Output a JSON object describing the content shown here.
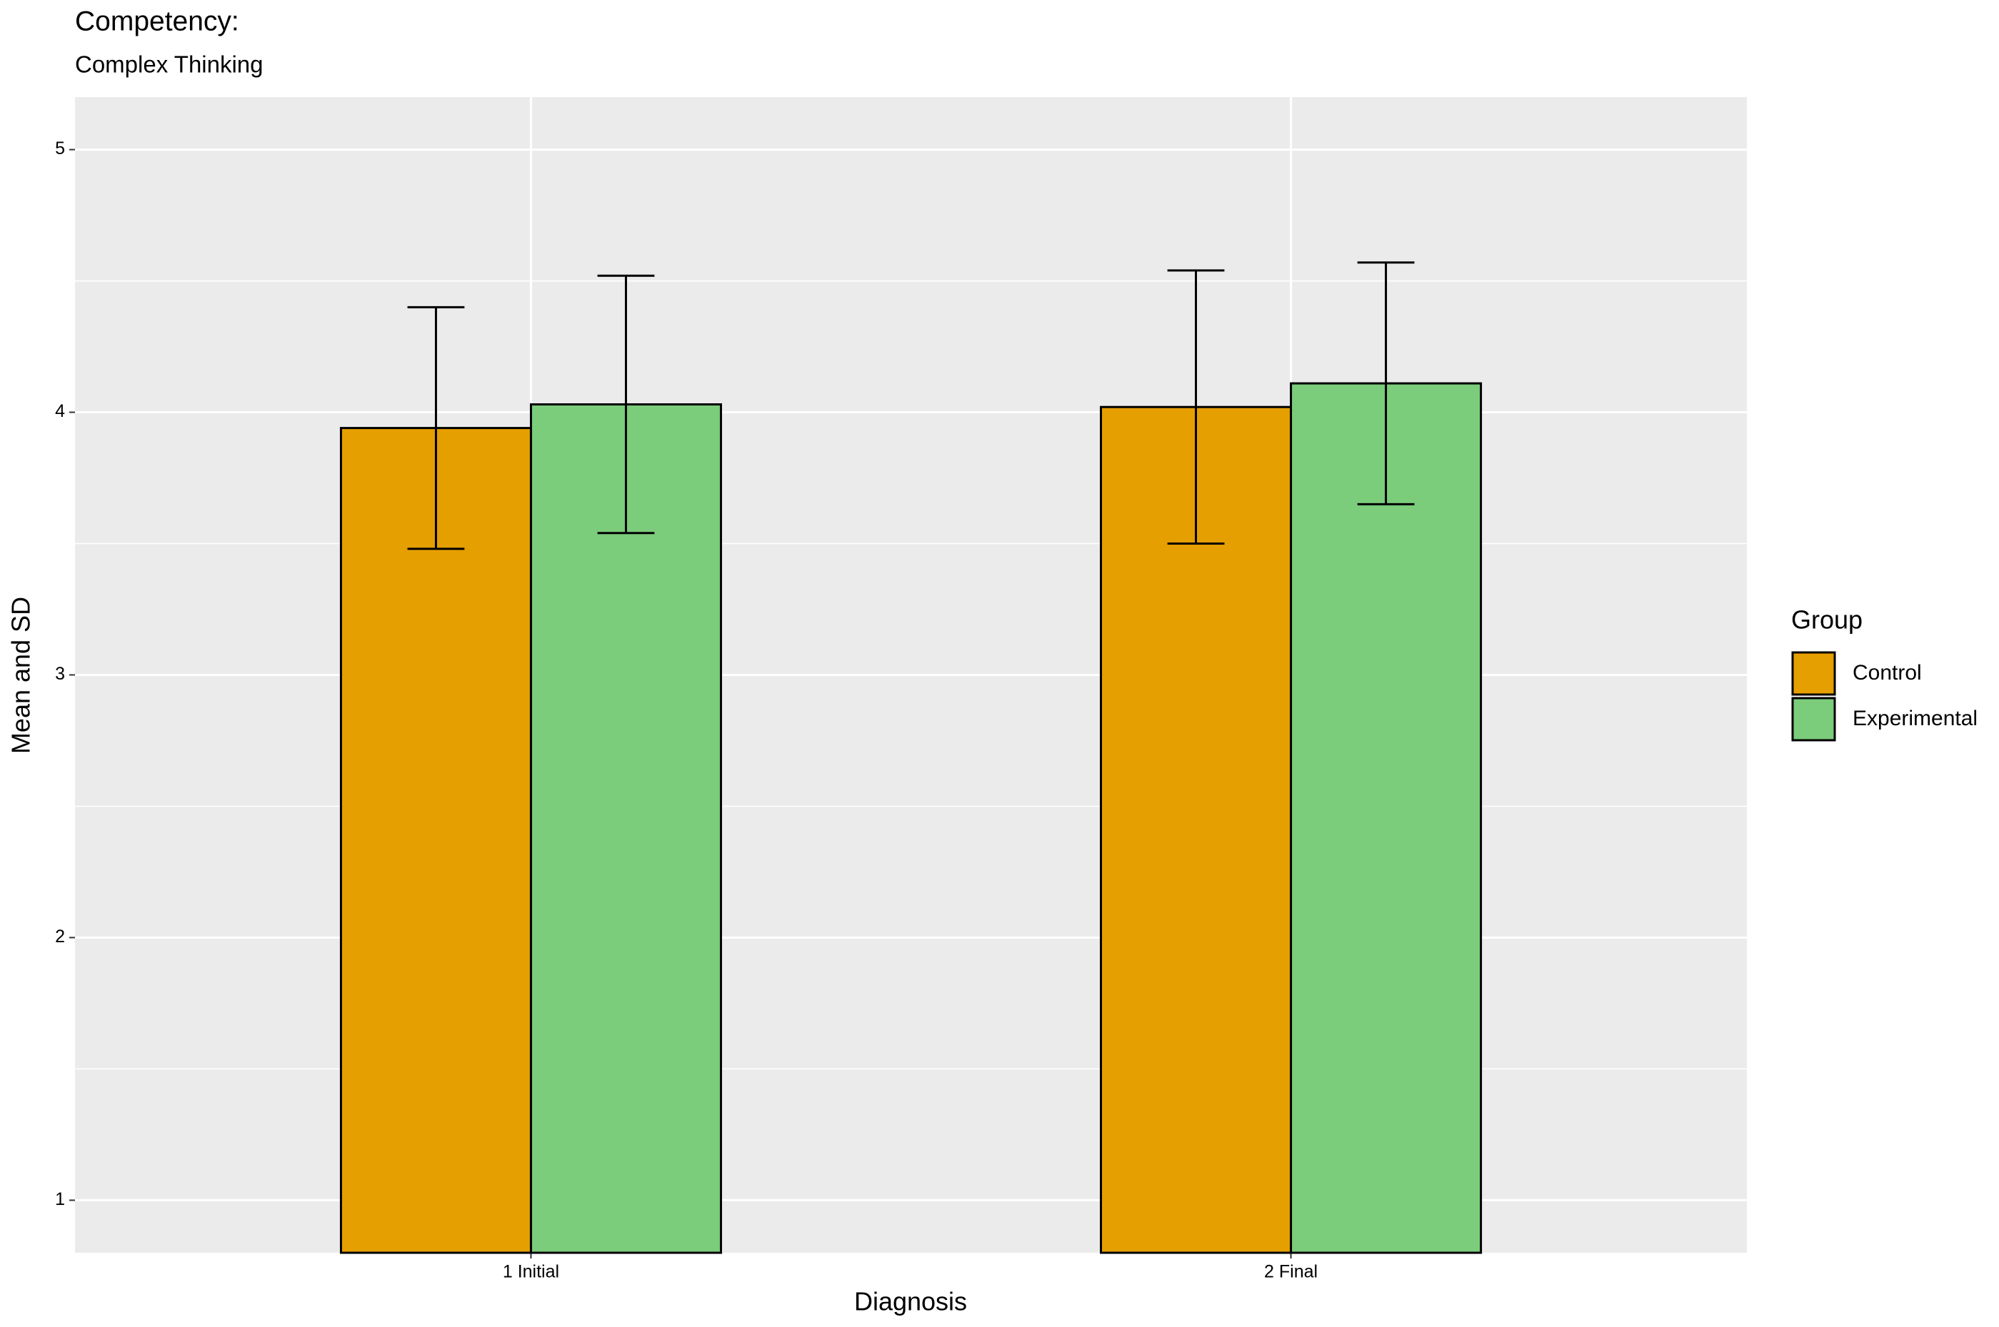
{
  "chart_data": {
    "type": "bar",
    "title": "Competency:",
    "subtitle": "Complex Thinking",
    "x_label": "Diagnosis",
    "y_label": "Mean and SD",
    "categories": [
      "1 Initial",
      "2 Final"
    ],
    "series": [
      {
        "name": "Control",
        "color": "#E69F00",
        "values": [
          3.94,
          4.02
        ],
        "errors": [
          0.46,
          0.52
        ]
      },
      {
        "name": "Experimental",
        "color": "#7BCC7B",
        "values": [
          4.03,
          4.11
        ],
        "errors": [
          0.49,
          0.46
        ]
      }
    ],
    "legend_title": "Group",
    "legend_position": "right",
    "ylim": [
      0.8,
      5.2
    ],
    "yticks": [
      1,
      2,
      3,
      4,
      5
    ],
    "yminor": [
      1.5,
      2.5,
      3.5,
      4.5
    ],
    "grid": true
  }
}
